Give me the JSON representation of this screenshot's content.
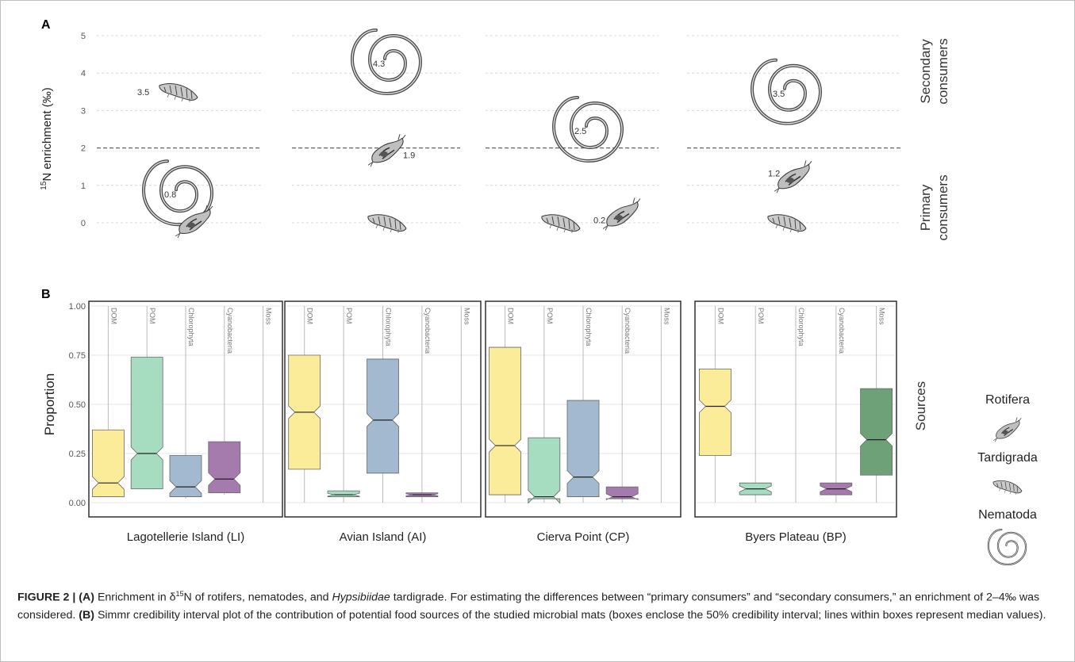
{
  "panel_a": {
    "label": "A",
    "ylabel_sup": "15",
    "ylabel_rest": "N enrichment (‰)",
    "ticks": [
      0,
      1,
      2,
      3,
      4,
      5
    ],
    "threshold": 2,
    "zone_top": [
      "Secondary",
      "consumers"
    ],
    "zone_bottom": [
      "Primary",
      "consumers"
    ],
    "sites": [
      {
        "organisms": [
          {
            "taxon": "Tardigrada",
            "value": 3.5,
            "label": "3.5"
          },
          {
            "taxon": "Nematoda",
            "value": 0.8,
            "label": "0.8"
          },
          {
            "taxon": "Rotifera",
            "value": 0.0,
            "label": ""
          }
        ]
      },
      {
        "organisms": [
          {
            "taxon": "Nematoda",
            "value": 4.3,
            "label": "4.3"
          },
          {
            "taxon": "Rotifera",
            "value": 1.9,
            "label": "1.9"
          },
          {
            "taxon": "Tardigrada",
            "value": 0.0,
            "label": ""
          }
        ]
      },
      {
        "organisms": [
          {
            "taxon": "Nematoda",
            "value": 2.5,
            "label": "2.5"
          },
          {
            "taxon": "Rotifera",
            "value": 0.2,
            "label": "0.2"
          },
          {
            "taxon": "Tardigrada",
            "value": 0.0,
            "label": ""
          }
        ]
      },
      {
        "organisms": [
          {
            "taxon": "Nematoda",
            "value": 3.5,
            "label": "3.5"
          },
          {
            "taxon": "Rotifera",
            "value": 1.2,
            "label": "1.2"
          },
          {
            "taxon": "Tardigrada",
            "value": 0.0,
            "label": ""
          }
        ]
      }
    ]
  },
  "panel_b": {
    "label": "B",
    "ylabel": "Proportion",
    "side_label": "Sources",
    "ticks": [
      "0.00",
      "0.25",
      "0.50",
      "0.75",
      "1.00"
    ],
    "sources": [
      "DOM",
      "POM",
      "Chlorophyta",
      "Cyanobacteria",
      "Moss"
    ],
    "source_colors": {
      "DOM": "#fbec9a",
      "POM": "#a6dcbf",
      "Chlorophyta": "#a3b9d0",
      "Cyanobacteria": "#a57bae",
      "Moss": "#6ea177"
    }
  },
  "legend": [
    "Rotifera",
    "Tardigrada",
    "Nematoda"
  ],
  "chart_data": [
    {
      "type": "scatter",
      "title": "",
      "ylabel": "15N enrichment (‰)",
      "ylim": [
        0,
        5
      ],
      "threshold": 2,
      "categories": [
        "Lagotellerie Island (LI)",
        "Avian Island (AI)",
        "Cierva Point (CP)",
        "Byers Plateau (BP)"
      ],
      "series": [
        {
          "name": "Rotifera",
          "values": [
            0.0,
            1.9,
            0.2,
            1.2
          ]
        },
        {
          "name": "Tardigrada",
          "values": [
            3.5,
            0.0,
            0.0,
            0.0
          ]
        },
        {
          "name": "Nematoda",
          "values": [
            0.8,
            4.3,
            2.5,
            3.5
          ]
        }
      ]
    },
    {
      "type": "box",
      "ylabel": "Proportion",
      "ylim": [
        0,
        1
      ],
      "facets": [
        {
          "name": "Lagotellerie Island (LI)",
          "boxes": [
            {
              "source": "DOM",
              "low": 0.03,
              "q1": 0.03,
              "median": 0.1,
              "q3": 0.37,
              "high": 1.0
            },
            {
              "source": "POM",
              "low": 0.07,
              "q1": 0.07,
              "median": 0.25,
              "q3": 0.74,
              "high": 1.0
            },
            {
              "source": "Chlorophyta",
              "low": 0.02,
              "q1": 0.03,
              "median": 0.08,
              "q3": 0.24,
              "high": 1.0
            },
            {
              "source": "Cyanobacteria",
              "low": 0.04,
              "q1": 0.05,
              "median": 0.12,
              "q3": 0.31,
              "high": 1.0
            },
            {
              "source": "Moss",
              "low": 0.0,
              "q1": 0.0,
              "median": 0.0,
              "q3": 0.0,
              "high": 1.0
            }
          ]
        },
        {
          "name": "Avian Island (AI)",
          "boxes": [
            {
              "source": "DOM",
              "low": 0.0,
              "q1": 0.17,
              "median": 0.46,
              "q3": 0.75,
              "high": 1.0
            },
            {
              "source": "POM",
              "low": 0.0,
              "q1": 0.03,
              "median": 0.04,
              "q3": 0.06,
              "high": 1.0
            },
            {
              "source": "Chlorophyta",
              "low": 0.0,
              "q1": 0.15,
              "median": 0.42,
              "q3": 0.73,
              "high": 1.0
            },
            {
              "source": "Cyanobacteria",
              "low": 0.0,
              "q1": 0.03,
              "median": 0.04,
              "q3": 0.05,
              "high": 1.0
            },
            {
              "source": "Moss",
              "low": 0.0,
              "q1": 0.0,
              "median": 0.0,
              "q3": 0.0,
              "high": 1.0
            }
          ]
        },
        {
          "name": "Cierva Point (CP)",
          "boxes": [
            {
              "source": "DOM",
              "low": 0.0,
              "q1": 0.04,
              "median": 0.29,
              "q3": 0.79,
              "high": 1.0
            },
            {
              "source": "POM",
              "low": 0.0,
              "q1": 0.02,
              "median": 0.03,
              "q3": 0.33,
              "high": 1.0
            },
            {
              "source": "Chlorophyta",
              "low": 0.0,
              "q1": 0.03,
              "median": 0.13,
              "q3": 0.52,
              "high": 1.0
            },
            {
              "source": "Cyanobacteria",
              "low": 0.0,
              "q1": 0.02,
              "median": 0.03,
              "q3": 0.08,
              "high": 1.0
            },
            {
              "source": "Moss",
              "low": 0.0,
              "q1": 0.0,
              "median": 0.0,
              "q3": 0.0,
              "high": 1.0
            }
          ]
        },
        {
          "name": "Byers Plateau (BP)",
          "boxes": [
            {
              "source": "DOM",
              "low": 0.0,
              "q1": 0.24,
              "median": 0.49,
              "q3": 0.68,
              "high": 1.0
            },
            {
              "source": "POM",
              "low": 0.0,
              "q1": 0.04,
              "median": 0.07,
              "q3": 0.1,
              "high": 1.0
            },
            {
              "source": "Chlorophyta",
              "low": 0.0,
              "q1": 0.0,
              "median": 0.0,
              "q3": 0.0,
              "high": 1.0
            },
            {
              "source": "Cyanobacteria",
              "low": 0.0,
              "q1": 0.04,
              "median": 0.07,
              "q3": 0.1,
              "high": 1.0
            },
            {
              "source": "Moss",
              "low": 0.0,
              "q1": 0.14,
              "median": 0.32,
              "q3": 0.58,
              "high": 1.0
            }
          ]
        }
      ]
    }
  ],
  "caption": {
    "fig": "FIGURE 2 | ",
    "a_tag": "(A)",
    "a_text1": " Enrichment in δ",
    "a_sup": "15",
    "a_text2": "N of rotifers, nematodes, and ",
    "a_italic": "Hypsibiidae",
    "a_text3": " tardigrade. For estimating the differences between “primary consumers” and “secondary consumers,” an enrichment of 2–4‰ was considered. ",
    "b_tag": "(B)",
    "b_text": " Simmr credibility interval plot of the contribution of potential food sources of the studied microbial mats (boxes enclose the 50% credibility interval; lines within boxes represent median values)."
  }
}
